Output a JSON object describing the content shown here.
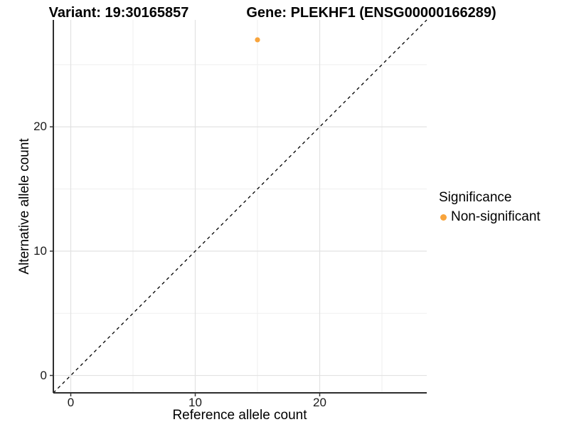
{
  "figure": {
    "background": "#FFFFFF",
    "title_left": "Variant: 19:30165857",
    "title_right": "Gene: PLEKHF1 (ENSG00000166289)"
  },
  "chart_data": {
    "type": "scatter",
    "xlabel": "Reference allele count",
    "ylabel": "Alternative allele count",
    "xlim": [
      -1.4,
      28.6
    ],
    "ylim": [
      -1.4,
      28.6
    ],
    "x_major_ticks": [
      0,
      10,
      20
    ],
    "y_major_ticks": [
      0,
      10,
      20
    ],
    "x_minor_gridlines": [
      5,
      15,
      25
    ],
    "y_minor_gridlines": [
      5,
      15,
      25
    ],
    "grid": true,
    "series": [
      {
        "name": "Non-significant",
        "color": "#F8A43C",
        "points": [
          {
            "x": 15,
            "y": 27
          }
        ]
      }
    ],
    "identity_line": {
      "slope": 1,
      "intercept": 0,
      "style": "dashed",
      "color": "#000000"
    },
    "legend": {
      "title": "Significance",
      "position": "right",
      "entries": [
        {
          "label": "Non-significant",
          "color": "#F8A43C"
        }
      ]
    }
  },
  "colors": {
    "axis_line": "#2E2E2E",
    "grid_major": "#E2E2E2",
    "grid_minor": "#EFEFEF",
    "tick_mark": "#333333"
  }
}
